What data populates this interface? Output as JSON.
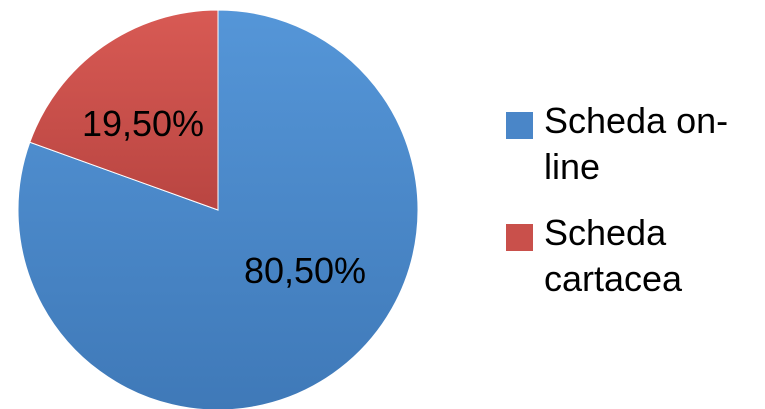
{
  "chart_data": {
    "type": "pie",
    "categories": [
      "Scheda on-line",
      "Scheda cartacea"
    ],
    "values": [
      80.5,
      19.5
    ],
    "labels": [
      "80,50%",
      "19,50%"
    ],
    "colors": [
      "#4a86c8",
      "#c9504b"
    ],
    "title": "",
    "legend_position": "right"
  },
  "legend": {
    "items": [
      {
        "label": "Scheda on-\nline",
        "color": "#4a86c8"
      },
      {
        "label": "Scheda\ncartacea",
        "color": "#c9504b"
      }
    ]
  }
}
